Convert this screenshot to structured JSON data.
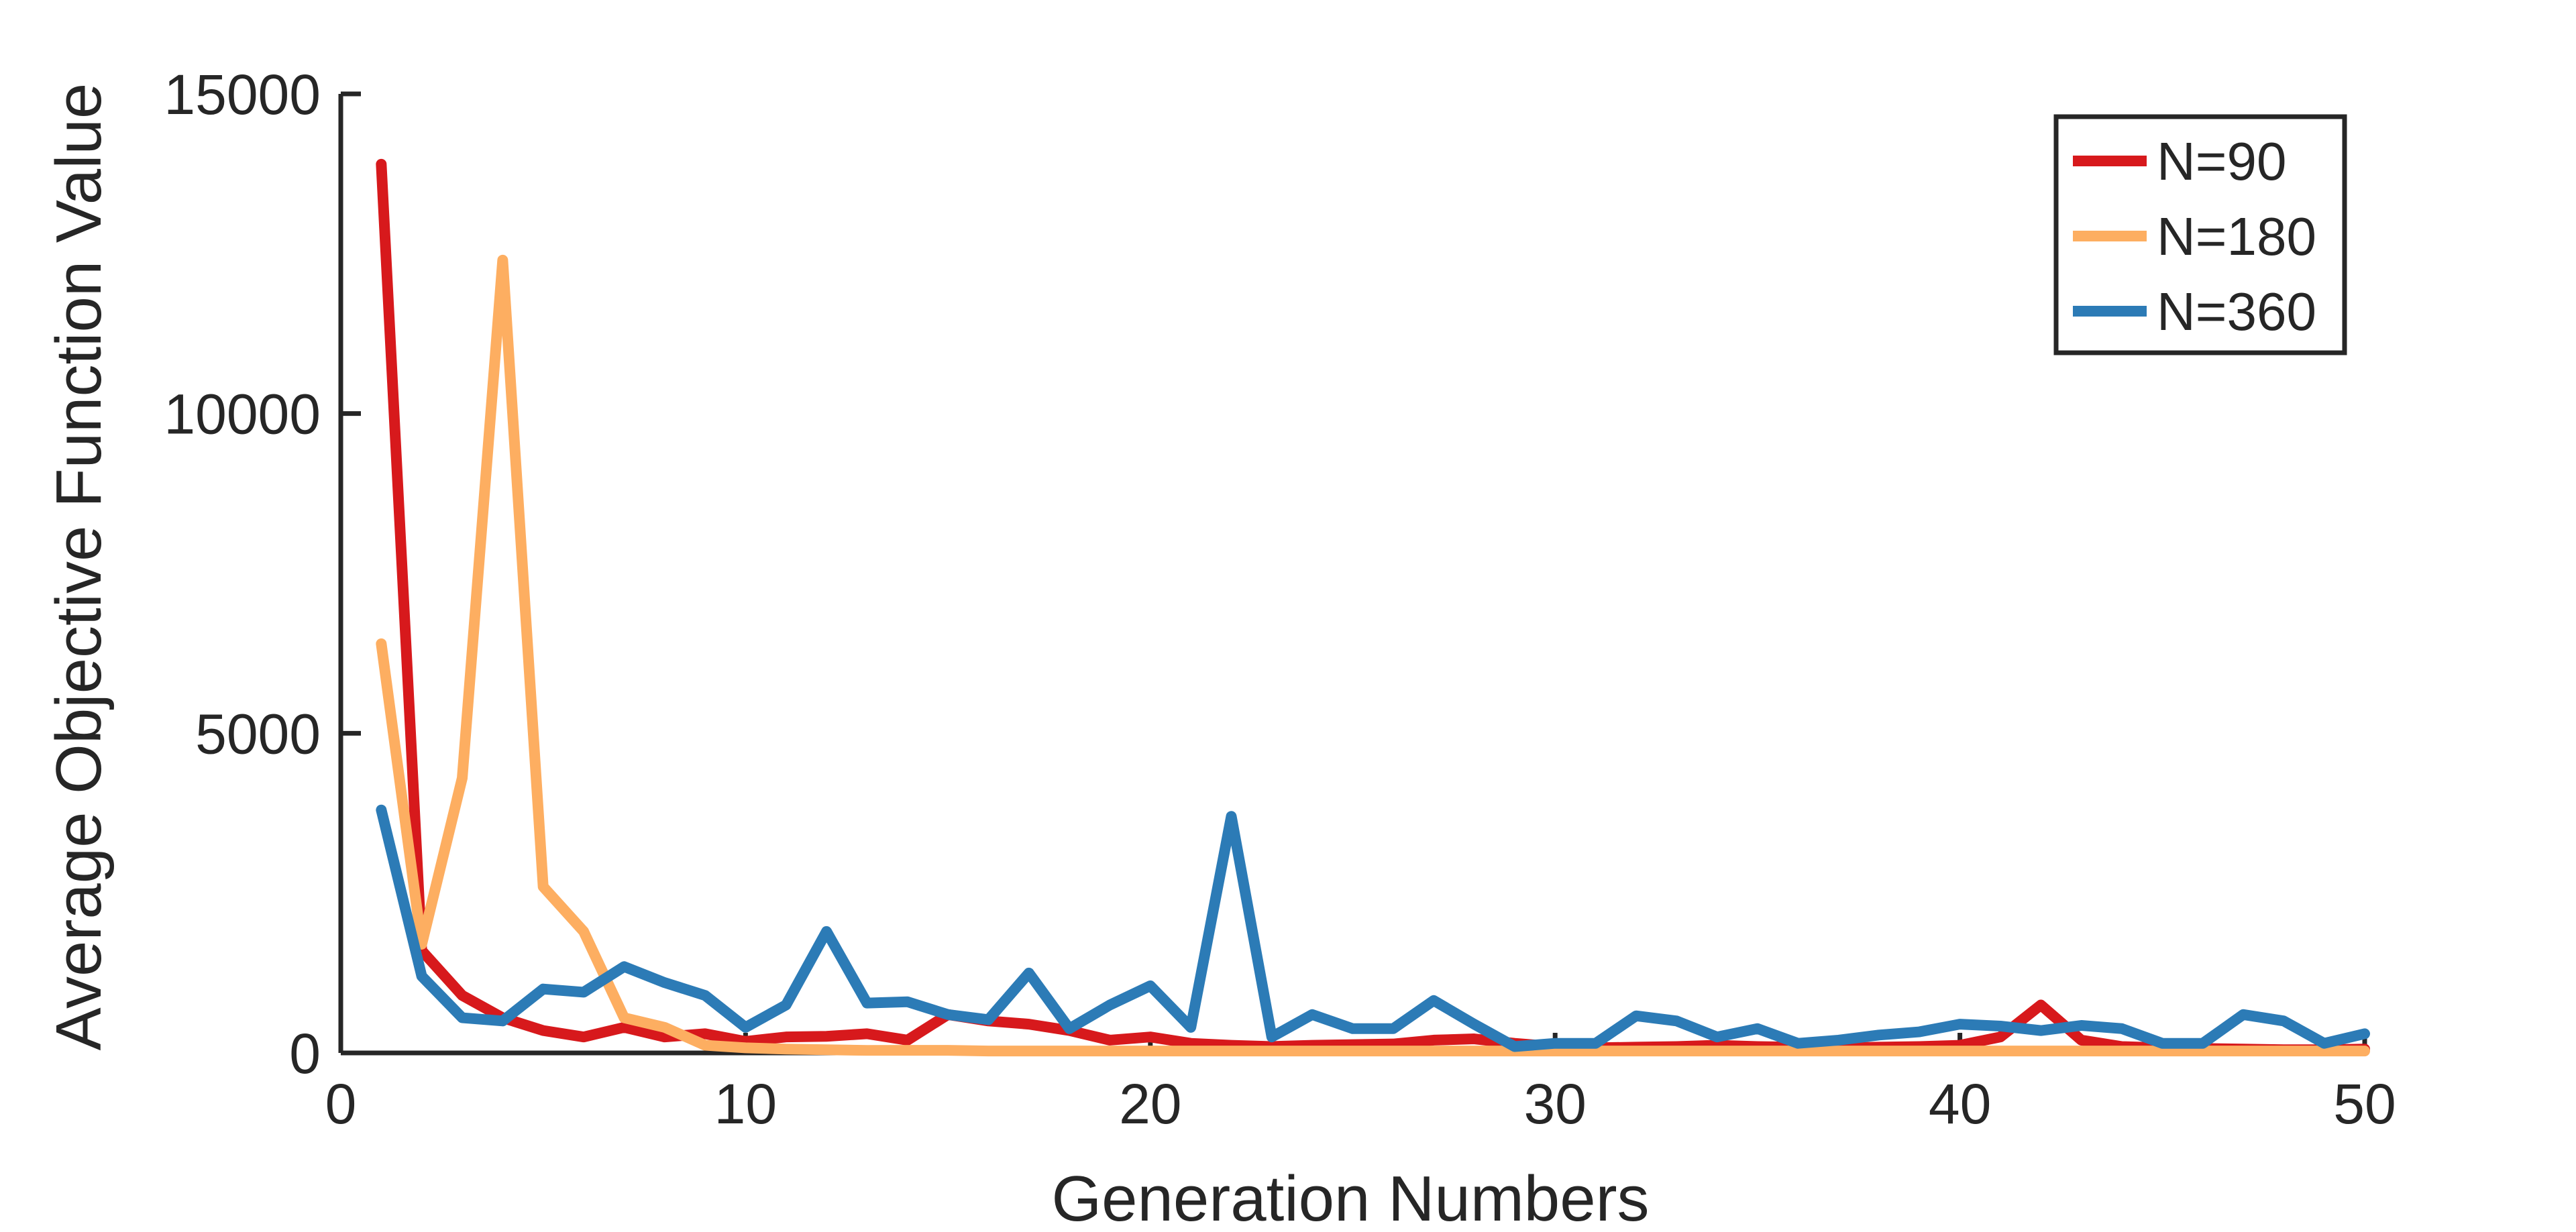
{
  "chart_data": {
    "type": "line",
    "xlabel": "Generation Numbers",
    "ylabel": "Average Objective Function Value",
    "xlim": [
      0,
      50
    ],
    "ylim": [
      0,
      15000
    ],
    "xticks": [
      0,
      10,
      20,
      30,
      40,
      50
    ],
    "yticks": [
      0,
      5000,
      10000,
      15000
    ],
    "grid": false,
    "legend_position": "top-right",
    "x": [
      1,
      2,
      3,
      4,
      5,
      6,
      7,
      8,
      9,
      10,
      11,
      12,
      13,
      14,
      15,
      16,
      17,
      18,
      19,
      20,
      21,
      22,
      23,
      24,
      25,
      26,
      27,
      28,
      29,
      30,
      31,
      32,
      33,
      34,
      35,
      36,
      37,
      38,
      39,
      40,
      41,
      42,
      43,
      44,
      45,
      46,
      47,
      48,
      49,
      50
    ],
    "series": [
      {
        "name": "N=90",
        "color": "#d7191c",
        "values": [
          13900,
          1600,
          900,
          550,
          350,
          250,
          400,
          250,
          300,
          180,
          250,
          260,
          300,
          200,
          600,
          500,
          450,
          350,
          200,
          250,
          150,
          120,
          100,
          120,
          130,
          140,
          200,
          220,
          150,
          100,
          80,
          90,
          100,
          120,
          100,
          90,
          80,
          90,
          100,
          120,
          250,
          750,
          200,
          100,
          80,
          70,
          60,
          50,
          50,
          60
        ]
      },
      {
        "name": "N=180",
        "color": "#fdae61",
        "values": [
          6400,
          1700,
          4300,
          12400,
          2600,
          1900,
          550,
          400,
          120,
          80,
          60,
          50,
          40,
          40,
          40,
          30,
          30,
          30,
          30,
          30,
          30,
          30,
          30,
          30,
          30,
          30,
          30,
          30,
          30,
          30,
          30,
          30,
          30,
          30,
          30,
          30,
          30,
          30,
          30,
          30,
          30,
          30,
          30,
          30,
          30,
          30,
          30,
          30,
          30,
          30
        ]
      },
      {
        "name": "N=360",
        "color": "#2c7bb6",
        "values": [
          3800,
          1200,
          550,
          500,
          1000,
          950,
          1350,
          1100,
          900,
          400,
          750,
          1900,
          780,
          800,
          600,
          520,
          1250,
          380,
          750,
          1050,
          400,
          3700,
          250,
          600,
          380,
          380,
          820,
          450,
          100,
          150,
          150,
          580,
          500,
          250,
          380,
          150,
          200,
          280,
          330,
          450,
          420,
          350,
          430,
          380,
          150,
          150,
          600,
          500,
          150,
          300
        ]
      }
    ]
  }
}
